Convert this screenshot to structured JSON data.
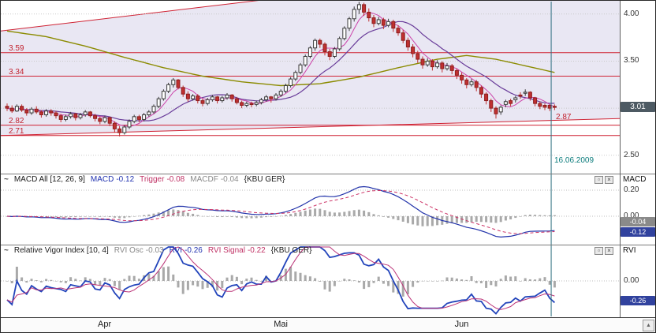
{
  "colors": {
    "channel_fill": "#e9e7f3",
    "level_line": "#cf2233",
    "candle_up_fill": "#ffffff",
    "candle_up_border": "#3a3a3a",
    "candle_down": "#c03030",
    "candle_down_border": "#8c1f1f",
    "ma_fast_magenta": "#cc44aa",
    "ma_slow_purple": "#6a3d9a",
    "ma_long_olive": "#8b8b00",
    "macd_blue": "#2233aa",
    "trigger_red": "#cc3366",
    "hist_gray": "#a9a9a9",
    "rvi_blue": "#2244bb",
    "rvi_signal_red": "#bb3377",
    "crosshair": "#2e6e7e",
    "date_text": "#0a7b7b"
  },
  "icons": {
    "wave": "~",
    "minimize": "▫",
    "close": "×",
    "scroll_up": "▲"
  },
  "macd_panel": {
    "title": "MACD All [12, 26, 9]",
    "pairs": [
      {
        "label": "MACD",
        "value": "-0.12"
      },
      {
        "label": "Trigger",
        "value": "-0.08"
      },
      {
        "label": "MACDF",
        "value": "-0.04"
      }
    ],
    "suffix": "{KBU GER}",
    "axis_title": "MACD"
  },
  "rvi_panel": {
    "title": "Relative Vigor Index [10, 4]",
    "pairs": [
      {
        "label": "RVI Osc",
        "value": "-0.03"
      },
      {
        "label": "RVI",
        "value": "-0.26"
      },
      {
        "label": "RVI Signal",
        "value": "-0.22"
      }
    ],
    "suffix": "{KBU GER}",
    "axis_title": "RVI"
  },
  "chart_data": [
    {
      "type": "candlestick",
      "symbol": "KBU GER",
      "ylim": [
        2.3,
        4.14
      ],
      "y_ticks": [
        {
          "label": "4.00",
          "value": 4.0
        },
        {
          "label": "3.50",
          "value": 3.5
        },
        {
          "label": "2.50",
          "value": 2.5
        }
      ],
      "grid_values": [
        4.0,
        3.5,
        3.0,
        2.5
      ],
      "last_price": 3.01,
      "last_price_label": "3.01",
      "horizontal_levels": [
        {
          "label": "3.59",
          "value": 3.59
        },
        {
          "label": "3.34",
          "value": 3.34
        },
        {
          "label": "2.82",
          "value": 2.82
        },
        {
          "label": "2.71",
          "value": 2.71
        }
      ],
      "trendline_label": {
        "label": "2.87",
        "value": 2.87
      },
      "channel": {
        "upper": {
          "p_start": 3.82,
          "p_end": 4.6
        },
        "lower": {
          "p_start": 2.71,
          "p_end": 2.89
        }
      },
      "crosshair": {
        "index": 111.3,
        "date_label": "16.06.2009"
      },
      "x_months": [
        {
          "label": "Apr",
          "center_index": 20
        },
        {
          "label": "Mai",
          "center_index": 56
        },
        {
          "label": "Jun",
          "center_index": 93
        }
      ],
      "overlays": {
        "ma_fast": {
          "type": "sma",
          "period": 5
        },
        "ma_slow": {
          "type": "sma",
          "period": 13
        },
        "ma_long_anchors": [
          [
            0,
            3.82
          ],
          [
            8,
            3.76
          ],
          [
            16,
            3.66
          ],
          [
            24,
            3.54
          ],
          [
            32,
            3.43
          ],
          [
            40,
            3.34
          ],
          [
            48,
            3.28
          ],
          [
            56,
            3.24
          ],
          [
            64,
            3.26
          ],
          [
            72,
            3.33
          ],
          [
            80,
            3.43
          ],
          [
            88,
            3.52
          ],
          [
            94,
            3.56
          ],
          [
            100,
            3.52
          ],
          [
            106,
            3.45
          ],
          [
            112,
            3.38
          ]
        ]
      },
      "ohlc": [
        [
          3.02,
          3.05,
          2.97,
          3.0
        ],
        [
          3.0,
          3.03,
          2.95,
          2.97
        ],
        [
          2.97,
          3.04,
          2.96,
          3.02
        ],
        [
          3.02,
          3.04,
          2.96,
          2.98
        ],
        [
          2.98,
          3.0,
          2.92,
          2.95
        ],
        [
          2.95,
          3.01,
          2.93,
          2.99
        ],
        [
          2.99,
          3.02,
          2.94,
          2.96
        ],
        [
          2.96,
          2.98,
          2.9,
          2.93
        ],
        [
          2.93,
          2.99,
          2.91,
          2.97
        ],
        [
          2.97,
          2.99,
          2.92,
          2.95
        ],
        [
          2.95,
          2.97,
          2.89,
          2.92
        ],
        [
          2.92,
          2.94,
          2.85,
          2.88
        ],
        [
          2.88,
          2.93,
          2.86,
          2.91
        ],
        [
          2.91,
          2.96,
          2.89,
          2.94
        ],
        [
          2.94,
          2.95,
          2.87,
          2.9
        ],
        [
          2.9,
          2.95,
          2.88,
          2.93
        ],
        [
          2.93,
          2.98,
          2.91,
          2.96
        ],
        [
          2.96,
          2.97,
          2.9,
          2.92
        ],
        [
          2.92,
          2.94,
          2.86,
          2.89
        ],
        [
          2.89,
          2.91,
          2.83,
          2.86
        ],
        [
          2.86,
          2.92,
          2.84,
          2.9
        ],
        [
          2.9,
          2.91,
          2.81,
          2.84
        ],
        [
          2.84,
          2.86,
          2.74,
          2.78
        ],
        [
          2.78,
          2.81,
          2.7,
          2.74
        ],
        [
          2.74,
          2.82,
          2.72,
          2.8
        ],
        [
          2.8,
          2.88,
          2.78,
          2.86
        ],
        [
          2.86,
          2.93,
          2.84,
          2.91
        ],
        [
          2.91,
          2.93,
          2.85,
          2.88
        ],
        [
          2.88,
          2.95,
          2.86,
          2.93
        ],
        [
          2.93,
          2.98,
          2.91,
          2.96
        ],
        [
          2.96,
          3.04,
          2.94,
          3.02
        ],
        [
          3.02,
          3.12,
          3.0,
          3.1
        ],
        [
          3.1,
          3.2,
          3.08,
          3.18
        ],
        [
          3.18,
          3.27,
          3.16,
          3.25
        ],
        [
          3.25,
          3.32,
          3.22,
          3.3
        ],
        [
          3.3,
          3.31,
          3.2,
          3.22
        ],
        [
          3.22,
          3.24,
          3.12,
          3.15
        ],
        [
          3.15,
          3.18,
          3.07,
          3.1
        ],
        [
          3.1,
          3.15,
          3.08,
          3.13
        ],
        [
          3.13,
          3.15,
          3.05,
          3.08
        ],
        [
          3.08,
          3.1,
          3.02,
          3.05
        ],
        [
          3.05,
          3.11,
          3.03,
          3.09
        ],
        [
          3.09,
          3.14,
          3.07,
          3.12
        ],
        [
          3.12,
          3.13,
          3.05,
          3.08
        ],
        [
          3.08,
          3.13,
          3.06,
          3.11
        ],
        [
          3.11,
          3.16,
          3.09,
          3.14
        ],
        [
          3.14,
          3.15,
          3.07,
          3.1
        ],
        [
          3.1,
          3.12,
          3.04,
          3.06
        ],
        [
          3.06,
          3.08,
          3.0,
          3.03
        ],
        [
          3.03,
          3.07,
          3.01,
          3.05
        ],
        [
          3.05,
          3.07,
          3.01,
          3.04
        ],
        [
          3.04,
          3.08,
          3.02,
          3.06
        ],
        [
          3.06,
          3.11,
          3.04,
          3.09
        ],
        [
          3.09,
          3.14,
          3.07,
          3.12
        ],
        [
          3.12,
          3.13,
          3.06,
          3.1
        ],
        [
          3.1,
          3.16,
          3.08,
          3.14
        ],
        [
          3.14,
          3.2,
          3.12,
          3.18
        ],
        [
          3.18,
          3.26,
          3.16,
          3.24
        ],
        [
          3.24,
          3.33,
          3.22,
          3.31
        ],
        [
          3.31,
          3.4,
          3.29,
          3.38
        ],
        [
          3.38,
          3.48,
          3.36,
          3.46
        ],
        [
          3.46,
          3.57,
          3.44,
          3.55
        ],
        [
          3.55,
          3.66,
          3.53,
          3.64
        ],
        [
          3.64,
          3.74,
          3.61,
          3.72
        ],
        [
          3.72,
          3.74,
          3.64,
          3.68
        ],
        [
          3.68,
          3.7,
          3.56,
          3.6
        ],
        [
          3.6,
          3.63,
          3.51,
          3.55
        ],
        [
          3.55,
          3.65,
          3.53,
          3.63
        ],
        [
          3.63,
          3.76,
          3.61,
          3.74
        ],
        [
          3.74,
          3.87,
          3.72,
          3.85
        ],
        [
          3.85,
          3.97,
          3.82,
          3.95
        ],
        [
          3.95,
          4.08,
          3.92,
          4.05
        ],
        [
          4.05,
          4.13,
          4.0,
          4.1
        ],
        [
          4.1,
          4.12,
          3.98,
          4.02
        ],
        [
          4.02,
          4.06,
          3.92,
          3.96
        ],
        [
          3.96,
          3.99,
          3.86,
          3.9
        ],
        [
          3.9,
          3.97,
          3.88,
          3.94
        ],
        [
          3.94,
          3.96,
          3.84,
          3.88
        ],
        [
          3.88,
          3.95,
          3.86,
          3.92
        ],
        [
          3.92,
          3.94,
          3.81,
          3.85
        ],
        [
          3.85,
          3.88,
          3.77,
          3.8
        ],
        [
          3.8,
          3.83,
          3.69,
          3.72
        ],
        [
          3.72,
          3.75,
          3.61,
          3.65
        ],
        [
          3.65,
          3.68,
          3.54,
          3.58
        ],
        [
          3.58,
          3.61,
          3.48,
          3.52
        ],
        [
          3.52,
          3.55,
          3.42,
          3.46
        ],
        [
          3.46,
          3.53,
          3.44,
          3.5
        ],
        [
          3.5,
          3.52,
          3.4,
          3.44
        ],
        [
          3.44,
          3.51,
          3.42,
          3.48
        ],
        [
          3.48,
          3.5,
          3.38,
          3.42
        ],
        [
          3.42,
          3.48,
          3.4,
          3.45
        ],
        [
          3.45,
          3.47,
          3.36,
          3.4
        ],
        [
          3.4,
          3.42,
          3.31,
          3.35
        ],
        [
          3.35,
          3.38,
          3.26,
          3.3
        ],
        [
          3.3,
          3.32,
          3.21,
          3.25
        ],
        [
          3.25,
          3.31,
          3.23,
          3.28
        ],
        [
          3.28,
          3.3,
          3.18,
          3.22
        ],
        [
          3.22,
          3.24,
          3.11,
          3.15
        ],
        [
          3.15,
          3.17,
          3.04,
          3.08
        ],
        [
          3.08,
          3.1,
          2.96,
          3.0
        ],
        [
          3.0,
          3.02,
          2.89,
          2.94
        ],
        [
          2.96,
          3.03,
          2.93,
          3.01
        ],
        [
          3.04,
          3.09,
          3.01,
          3.07
        ],
        [
          3.08,
          3.1,
          3.02,
          3.05
        ],
        [
          3.09,
          3.13,
          3.06,
          3.11
        ],
        [
          3.14,
          3.17,
          3.1,
          3.13
        ],
        [
          3.16,
          3.2,
          3.13,
          3.17
        ],
        [
          3.17,
          3.18,
          3.08,
          3.11
        ],
        [
          3.11,
          3.12,
          3.02,
          3.05
        ],
        [
          3.05,
          3.07,
          2.99,
          3.02
        ],
        [
          3.03,
          3.05,
          2.98,
          3.01
        ],
        [
          3.03,
          3.04,
          2.97,
          3.0
        ],
        [
          3.02,
          3.04,
          2.98,
          3.01
        ]
      ]
    },
    {
      "type": "macd",
      "params": [
        12,
        26,
        9
      ],
      "y_ticks": [
        {
          "label": "0.20",
          "value": 0.2
        },
        {
          "label": "0.00",
          "value": 0.0
        }
      ],
      "current": {
        "macd": -0.12,
        "trigger": -0.08,
        "macdf": -0.04
      },
      "value_boxes": [
        {
          "label": "-0.04",
          "value": -0.04,
          "style": "gray"
        },
        {
          "label": "-0.12",
          "value": -0.12,
          "style": "blue"
        }
      ]
    },
    {
      "type": "rvi",
      "params": [
        10,
        4
      ],
      "y_ticks": [
        {
          "label": "0.00",
          "value": 0.0
        }
      ],
      "current": {
        "rvi_osc": -0.03,
        "rvi": -0.26,
        "rvi_signal": -0.22
      },
      "value_boxes": [
        {
          "label": "-0.26",
          "value": -0.26,
          "style": "blue"
        }
      ]
    }
  ]
}
